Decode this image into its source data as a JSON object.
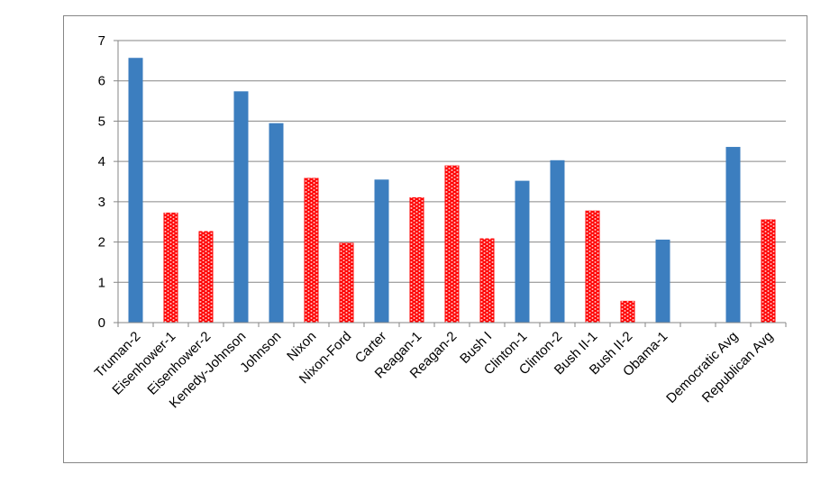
{
  "chart_data": {
    "type": "bar",
    "title": "",
    "xlabel": "",
    "ylabel": "",
    "ylim": [
      0,
      7
    ],
    "yticks": [
      0,
      1,
      2,
      3,
      4,
      5,
      6,
      7
    ],
    "grid": true,
    "legend": "none",
    "colors": {
      "Democratic": "#3c7ebf",
      "Republican": "#ff0000",
      "pattern_background": "#ffffff"
    },
    "categories": [
      "Truman-2",
      "Eisenhower-1",
      "Eisenhower-2",
      "Kenedy-Johnson",
      "Johnson",
      "Nixon",
      "Nixon-Ford",
      "Carter",
      "Reagan-1",
      "Reagan-2",
      "Bush I",
      "Clinton-1",
      "Clinton-2",
      "Bush II-1",
      "Bush II-2",
      "Obama-1",
      "",
      "Democratic Avg",
      "Republican Avg"
    ],
    "values": [
      6.57,
      2.73,
      2.27,
      5.74,
      4.95,
      3.59,
      1.98,
      3.55,
      3.11,
      3.9,
      2.09,
      3.52,
      4.03,
      2.78,
      0.54,
      2.06,
      null,
      4.36,
      2.56
    ],
    "party": [
      "D",
      "R",
      "R",
      "D",
      "D",
      "R",
      "R",
      "D",
      "R",
      "R",
      "R",
      "D",
      "D",
      "R",
      "R",
      "D",
      "",
      "D",
      "R"
    ]
  }
}
